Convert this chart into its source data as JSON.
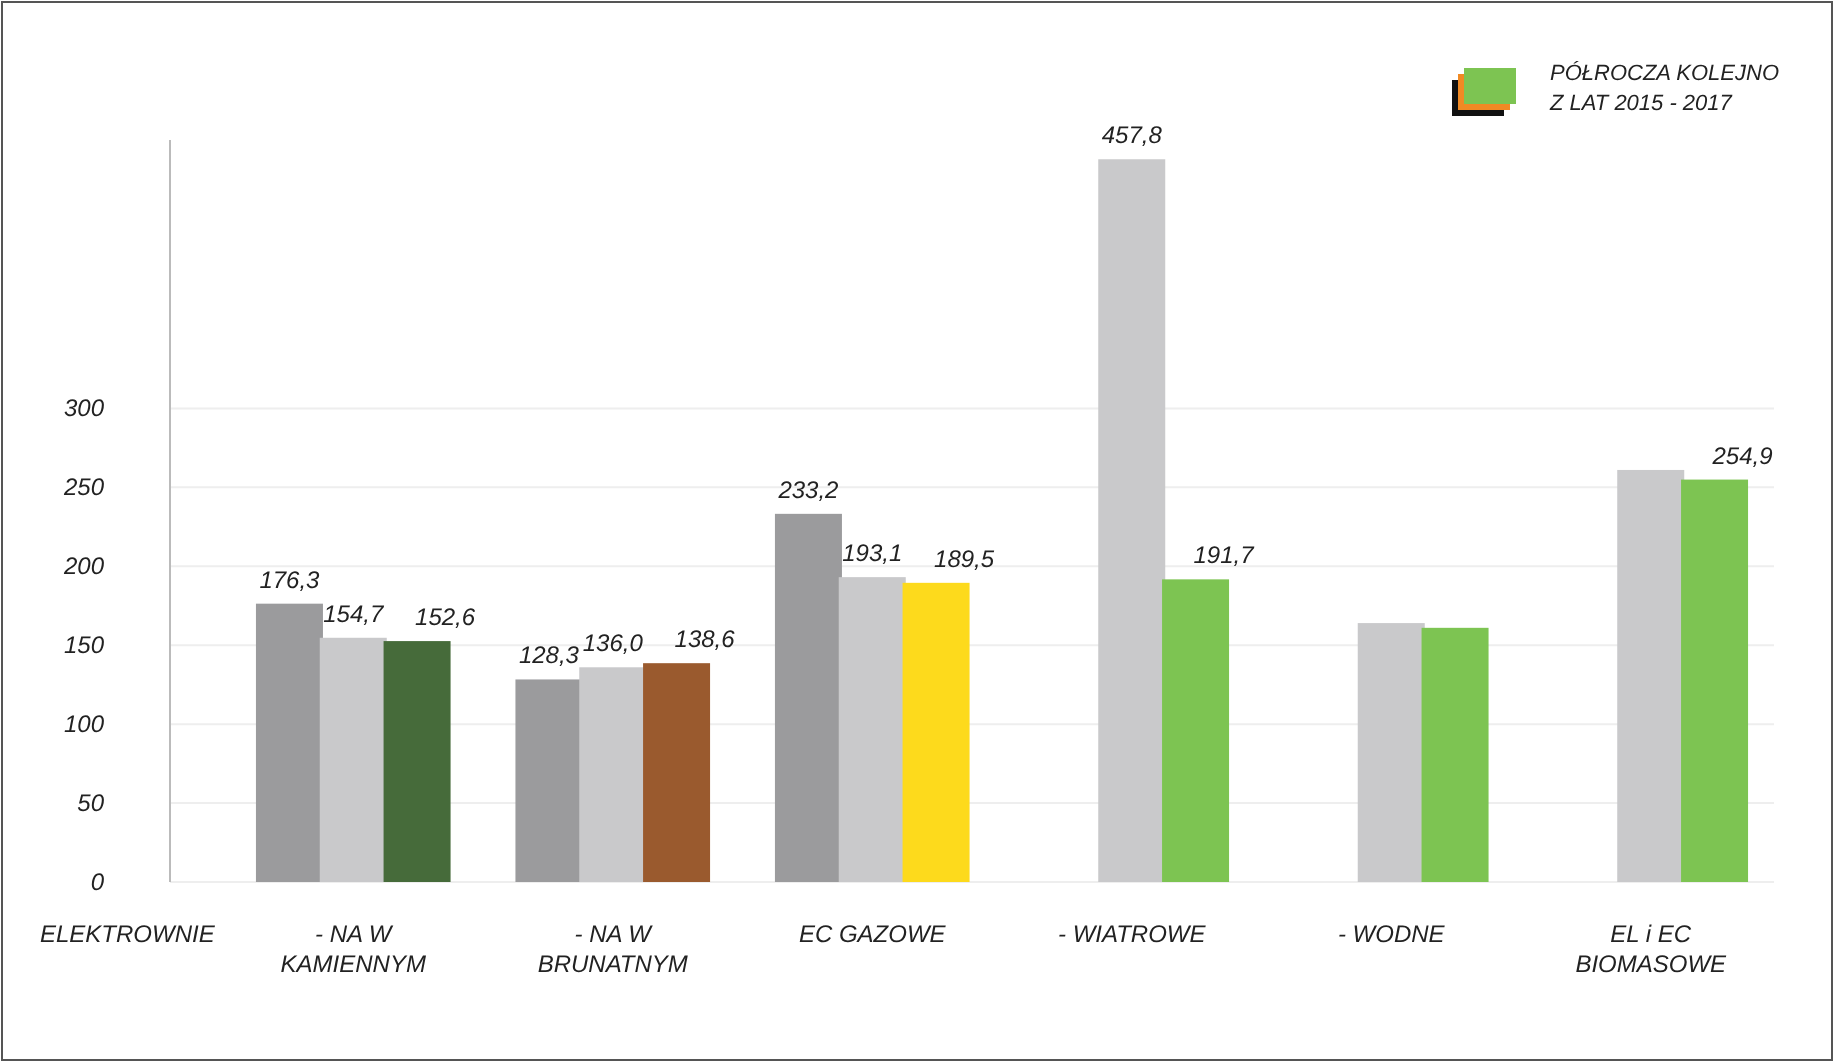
{
  "chart_data": {
    "type": "bar",
    "legend_title": "PÓŁROCZA KOLEJNO\nZ LAT 2015 - 2017",
    "categories": [
      "- NA W\nKAMIENNYM",
      "- NA W\nBRUNATNYM",
      "EC GAZOWE",
      "- WIATROWE",
      "-  WODNE",
      "EL i EC\nBIOMASOWE"
    ],
    "series": [
      {
        "color": "#9b9b9d",
        "values": [
          176.3,
          128.3,
          233.2,
          null,
          null,
          null
        ],
        "value_labels": [
          "176,3",
          "128,3",
          "233,2",
          null,
          null,
          null
        ]
      },
      {
        "color": "#c9c9cb",
        "values": [
          154.7,
          136.0,
          193.1,
          457.8,
          164,
          261
        ],
        "value_labels": [
          "154,7",
          "136,0",
          "193,1",
          "457,8",
          null,
          null
        ]
      },
      {
        "colors": [
          "#466b3a",
          "#9a5a2e",
          "#fdda1c",
          "#7dc452",
          "#7dc452",
          "#7dc452"
        ],
        "values": [
          152.6,
          138.6,
          189.5,
          191.7,
          161,
          254.9
        ],
        "value_labels": [
          "152,6",
          "138,6",
          "189,5",
          "191,7",
          null,
          "254,9"
        ]
      }
    ],
    "ylim": [
      0,
      470
    ],
    "yticks": [
      0,
      50,
      100,
      150,
      200,
      250,
      300
    ],
    "grid": "y",
    "annotations": [
      "ELEKTROWNIE"
    ]
  }
}
